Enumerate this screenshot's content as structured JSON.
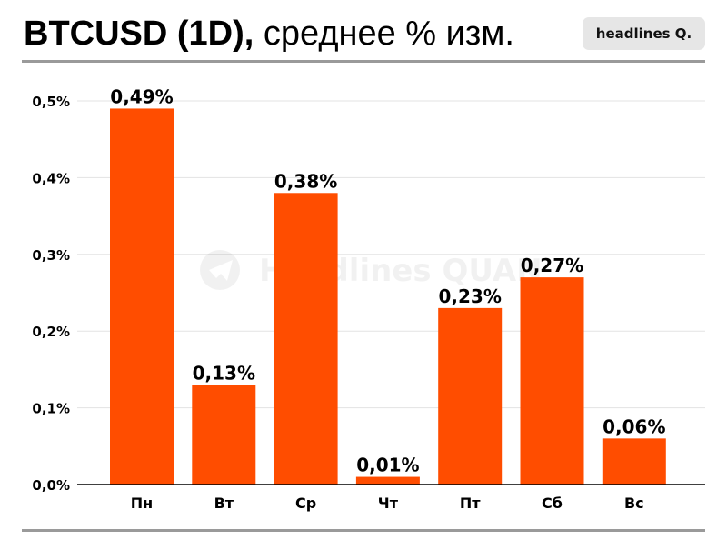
{
  "header": {
    "title_bold": "BTCUSD (1D),",
    "title_rest": " среднее % изм.",
    "badge": "headlines Q."
  },
  "watermark": "Headlines QUAN",
  "colors": {
    "bar": "#ff4d00",
    "grid": "#e3e3e3",
    "axis": "#000000"
  },
  "chart_data": {
    "type": "bar",
    "title": "BTCUSD (1D), среднее % изм.",
    "categories": [
      "Пн",
      "Вт",
      "Ср",
      "Чт",
      "Пт",
      "Сб",
      "Вс"
    ],
    "values": [
      0.49,
      0.13,
      0.38,
      0.01,
      0.23,
      0.27,
      0.06
    ],
    "value_labels": [
      "0,49%",
      "0,13%",
      "0,38%",
      "0,01%",
      "0,23%",
      "0,27%",
      "0,06%"
    ],
    "ylim": [
      0,
      0.5
    ],
    "yticks": [
      0,
      0.1,
      0.2,
      0.3,
      0.4,
      0.5
    ],
    "ytick_labels": [
      "0,0%",
      "0,1%",
      "0,2%",
      "0,3%",
      "0,4%",
      "0,5%"
    ],
    "grid": true,
    "legend": "none"
  }
}
